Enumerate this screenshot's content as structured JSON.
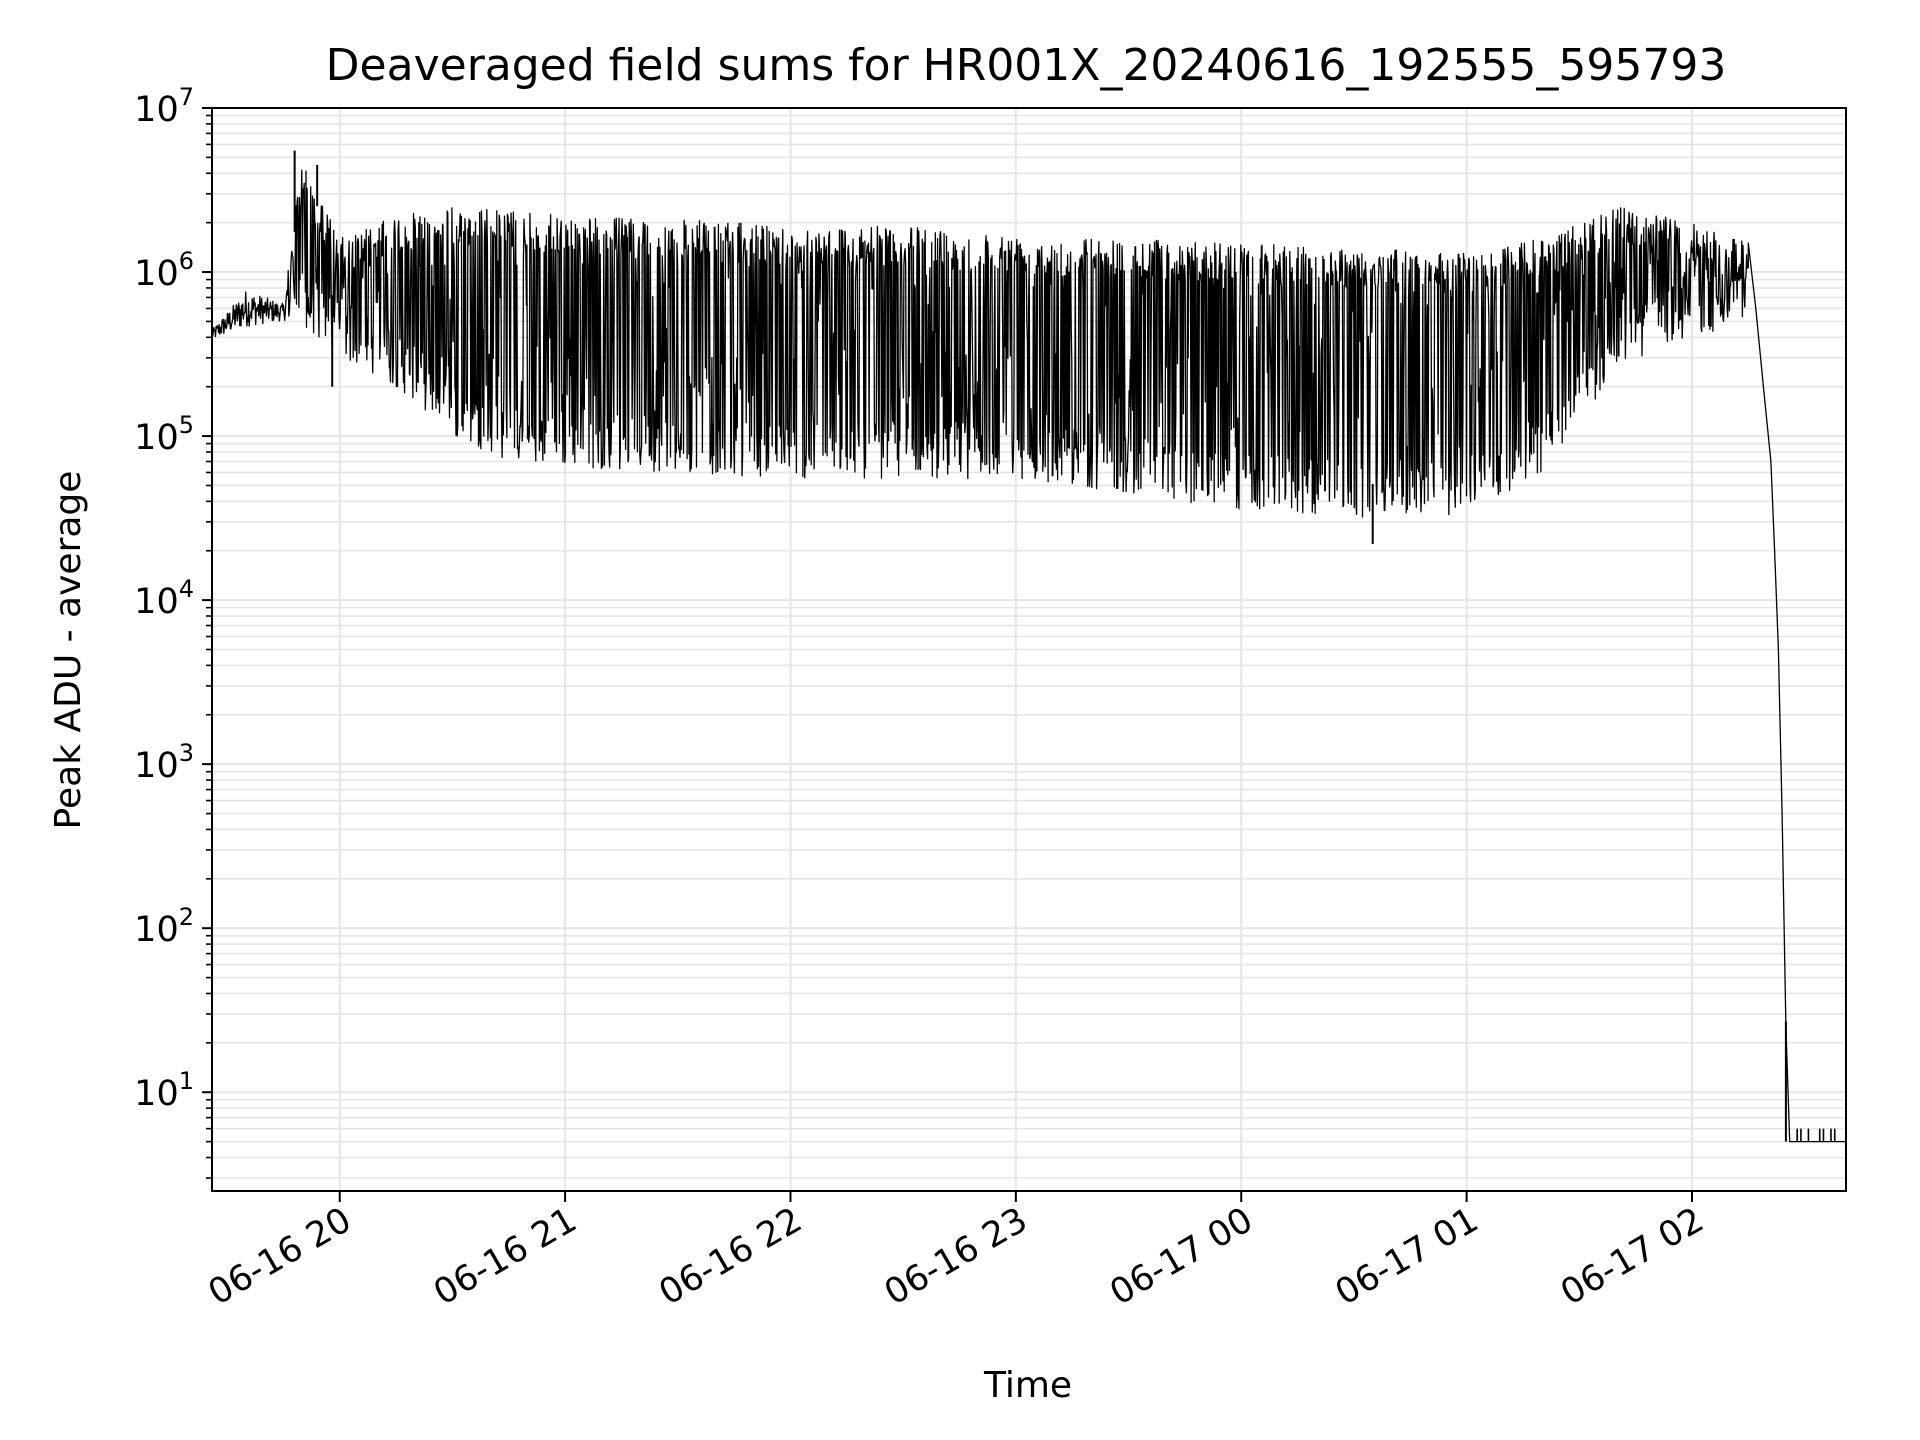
{
  "chart_data": {
    "type": "line",
    "title": "Deaveraged field sums for HR001X_20240616_192555_595793",
    "xlabel": "Time",
    "ylabel": "Peak ADU - average",
    "yscale": "log",
    "ylim": [
      2.5,
      10000000
    ],
    "xlim": [
      "2024-06-16 19:26",
      "2024-06-17 02:41"
    ],
    "x_ticks": [
      {
        "value": "2024-06-16 20:00",
        "label": "06-16 20"
      },
      {
        "value": "2024-06-16 21:00",
        "label": "06-16 21"
      },
      {
        "value": "2024-06-16 22:00",
        "label": "06-16 22"
      },
      {
        "value": "2024-06-16 23:00",
        "label": "06-16 23"
      },
      {
        "value": "2024-06-17 00:00",
        "label": "06-17 00"
      },
      {
        "value": "2024-06-17 01:00",
        "label": "06-17 01"
      },
      {
        "value": "2024-06-17 02:00",
        "label": "06-17 02"
      }
    ],
    "y_ticks": [
      {
        "value": 10,
        "base": "10",
        "exp": "1"
      },
      {
        "value": 100,
        "base": "10",
        "exp": "2"
      },
      {
        "value": 1000,
        "base": "10",
        "exp": "3"
      },
      {
        "value": 10000,
        "base": "10",
        "exp": "4"
      },
      {
        "value": 100000,
        "base": "10",
        "exp": "5"
      },
      {
        "value": 1000000,
        "base": "10",
        "exp": "6"
      },
      {
        "value": 10000000,
        "base": "10",
        "exp": "7"
      }
    ],
    "grid": true,
    "series_color": "#000000",
    "grid_color": "#e5e5e5",
    "envelope": [
      {
        "t": "2024-06-16 19:26",
        "high": 450000,
        "low": 380000
      },
      {
        "t": "2024-06-16 19:35",
        "high": 800000,
        "low": 450000
      },
      {
        "t": "2024-06-16 19:45",
        "high": 650000,
        "low": 500000
      },
      {
        "t": "2024-06-16 19:50",
        "high": 5000000,
        "low": 450000
      },
      {
        "t": "2024-06-16 20:00",
        "high": 1600000,
        "low": 300000
      },
      {
        "t": "2024-06-16 20:15",
        "high": 2200000,
        "low": 200000
      },
      {
        "t": "2024-06-16 20:30",
        "high": 2500000,
        "low": 100000
      },
      {
        "t": "2024-06-16 20:45",
        "high": 2400000,
        "low": 70000
      },
      {
        "t": "2024-06-16 21:00",
        "high": 2200000,
        "low": 65000
      },
      {
        "t": "2024-06-16 21:30",
        "high": 2100000,
        "low": 60000
      },
      {
        "t": "2024-06-16 22:00",
        "high": 1900000,
        "low": 55000
      },
      {
        "t": "2024-06-16 22:30",
        "high": 1900000,
        "low": 55000
      },
      {
        "t": "2024-06-16 23:00",
        "high": 1700000,
        "low": 55000
      },
      {
        "t": "2024-06-16 23:30",
        "high": 1600000,
        "low": 45000
      },
      {
        "t": "2024-06-17 00:00",
        "high": 1500000,
        "low": 35000
      },
      {
        "t": "2024-06-17 00:30",
        "high": 1400000,
        "low": 32000
      },
      {
        "t": "2024-06-17 01:00",
        "high": 1300000,
        "low": 33000
      },
      {
        "t": "2024-06-17 01:20",
        "high": 1600000,
        "low": 60000
      },
      {
        "t": "2024-06-17 01:40",
        "high": 2500000,
        "low": 250000
      },
      {
        "t": "2024-06-17 02:00",
        "high": 2000000,
        "low": 400000
      },
      {
        "t": "2024-06-17 02:15",
        "high": 1500000,
        "low": 500000
      }
    ],
    "decay": [
      {
        "t": "2024-06-17 02:15",
        "y": 1500000
      },
      {
        "t": "2024-06-17 02:17",
        "y": 600000
      },
      {
        "t": "2024-06-17 02:19",
        "y": 200000
      },
      {
        "t": "2024-06-17 02:21",
        "y": 70000
      },
      {
        "t": "2024-06-17 02:22",
        "y": 20000
      },
      {
        "t": "2024-06-17 02:23",
        "y": 5000
      },
      {
        "t": "2024-06-17 02:24",
        "y": 500
      },
      {
        "t": "2024-06-17 02:25",
        "y": 25
      },
      {
        "t": "2024-06-17 02:26",
        "y": 5
      },
      {
        "t": "2024-06-17 02:41",
        "y": 5
      }
    ],
    "spikes": [
      {
        "t": "2024-06-16 19:48",
        "y": 5500000
      },
      {
        "t": "2024-06-16 19:54",
        "y": 4500000
      },
      {
        "t": "2024-06-16 19:58",
        "y": 200000
      },
      {
        "t": "2024-06-17 00:35",
        "y": 22000
      },
      {
        "t": "2024-06-17 02:25",
        "y": 27
      }
    ],
    "floor_ticks": {
      "value": 6,
      "base_value": 5,
      "times": [
        "2024-06-17 02:28",
        "2024-06-17 02:29",
        "2024-06-17 02:31",
        "2024-06-17 02:34",
        "2024-06-17 02:35",
        "2024-06-17 02:37",
        "2024-06-17 02:38"
      ]
    }
  }
}
